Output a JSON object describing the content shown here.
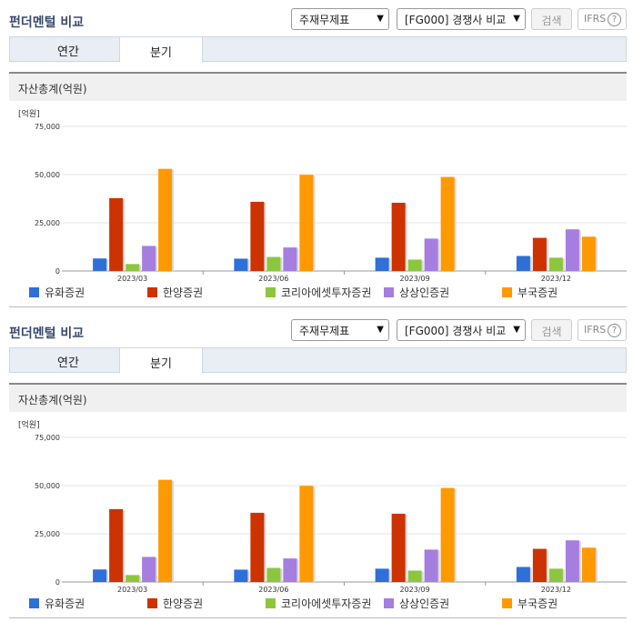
{
  "header": {
    "title": "펀더멘털 비교",
    "select_statement": "주재무제표",
    "select_compare": "[FG000] 경쟁사 비교",
    "search_label": "검색",
    "ifrs_label": "IFRS",
    "help_glyph": "?"
  },
  "tabs": [
    {
      "label": "연간",
      "active": false
    },
    {
      "label": "분기",
      "active": true
    }
  ],
  "chart_title": "자산총계(억원)",
  "colors": {
    "accent": "#3a4a6b",
    "series": [
      "#2f6fd8",
      "#cc3300",
      "#8cc63f",
      "#a57ee0",
      "#ff9900"
    ]
  },
  "chart_data": {
    "type": "bar",
    "unit_label": "[억원]",
    "categories": [
      "2023/03",
      "2023/06",
      "2023/09",
      "2023/12"
    ],
    "ylim": [
      0,
      75000
    ],
    "yticks": [
      0,
      25000,
      50000,
      75000
    ],
    "ytick_labels": [
      "0",
      "25,000",
      "50,000",
      "75,000"
    ],
    "grid": true,
    "legend_position": "bottom",
    "series": [
      {
        "name": "유화증권",
        "values": [
          6500,
          6400,
          6900,
          7800
        ]
      },
      {
        "name": "한양증권",
        "values": [
          37800,
          35900,
          35400,
          17200
        ]
      },
      {
        "name": "코리아에셋투자증권",
        "values": [
          3600,
          7300,
          5900,
          6900
        ]
      },
      {
        "name": "상상인증권",
        "values": [
          13000,
          12200,
          16800,
          21600
        ]
      },
      {
        "name": "부국증권",
        "values": [
          53000,
          49900,
          48800,
          17800
        ]
      }
    ]
  }
}
